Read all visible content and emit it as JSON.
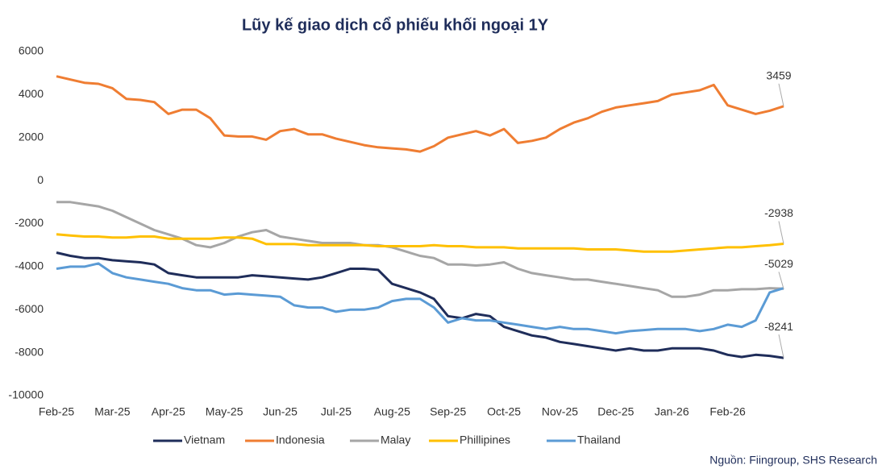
{
  "chart_data": {
    "type": "line",
    "title": "Lũy kế giao dịch cổ phiếu khối ngoại 1Y",
    "source": "Nguồn: Fiingroup, SHS Research",
    "categories": [
      "Feb-25",
      null,
      null,
      null,
      "Mar-25",
      null,
      null,
      null,
      "Apr-25",
      null,
      null,
      null,
      "May-25",
      null,
      null,
      null,
      "Jun-25",
      null,
      null,
      null,
      "Jul-25",
      null,
      null,
      null,
      "Aug-25",
      null,
      null,
      null,
      "Sep-25",
      null,
      null,
      null,
      "Oct-25",
      null,
      null,
      null,
      "Nov-25",
      null,
      null,
      null,
      "Dec-25",
      null,
      null,
      null,
      "Jan-26",
      null,
      null,
      null,
      "Feb-26",
      null,
      null,
      null,
      null
    ],
    "series": [
      {
        "name": "Vietnam",
        "color": "#1f2d5a",
        "values": [
          -3350,
          -3500,
          -3600,
          -3600,
          -3700,
          -3750,
          -3800,
          -3900,
          -4300,
          -4400,
          -4500,
          -4500,
          -4500,
          -4500,
          -4400,
          -4450,
          -4500,
          -4550,
          -4600,
          -4500,
          -4300,
          -4100,
          -4100,
          -4150,
          -4800,
          -5000,
          -5200,
          -5500,
          -6300,
          -6400,
          -6200,
          -6300,
          -6800,
          -7000,
          -7200,
          -7300,
          -7500,
          -7600,
          -7700,
          -7800,
          -7900,
          -7800,
          -7900,
          -7900,
          -7800,
          -7800,
          -7800,
          -7900,
          -8100,
          -8200,
          -8100,
          -8150,
          -8241
        ]
      },
      {
        "name": "Indonesia",
        "color": "#ef7d32",
        "values": [
          4850,
          4700,
          4550,
          4500,
          4300,
          3800,
          3750,
          3650,
          3100,
          3300,
          3300,
          2900,
          2100,
          2050,
          2050,
          1900,
          2300,
          2400,
          2150,
          2150,
          1950,
          1800,
          1650,
          1550,
          1500,
          1450,
          1350,
          1600,
          2000,
          2150,
          2300,
          2100,
          2400,
          1750,
          1850,
          2000,
          2400,
          2700,
          2900,
          3200,
          3400,
          3500,
          3600,
          3700,
          4000,
          4100,
          4200,
          4450,
          3500,
          3300,
          3100,
          3250,
          3459
        ]
      },
      {
        "name": "Malay",
        "color": "#a6a6a6",
        "values": [
          -1000,
          -1000,
          -1100,
          -1200,
          -1400,
          -1700,
          -2000,
          -2300,
          -2500,
          -2700,
          -3000,
          -3100,
          -2900,
          -2600,
          -2400,
          -2300,
          -2600,
          -2700,
          -2800,
          -2900,
          -2900,
          -2900,
          -3000,
          -3000,
          -3100,
          -3300,
          -3500,
          -3600,
          -3900,
          -3900,
          -3950,
          -3900,
          -3800,
          -4100,
          -4300,
          -4400,
          -4500,
          -4600,
          -4600,
          -4700,
          -4800,
          -4900,
          -5000,
          -5100,
          -5400,
          -5400,
          -5300,
          -5100,
          -5100,
          -5050,
          -5050,
          -5000,
          -5029
        ]
      },
      {
        "name": "Phillipines",
        "color": "#ffc000",
        "values": [
          -2500,
          -2550,
          -2600,
          -2600,
          -2650,
          -2650,
          -2600,
          -2600,
          -2700,
          -2700,
          -2700,
          -2700,
          -2650,
          -2650,
          -2700,
          -2950,
          -2950,
          -2950,
          -3000,
          -3000,
          -3000,
          -3000,
          -3000,
          -3050,
          -3050,
          -3050,
          -3050,
          -3000,
          -3050,
          -3050,
          -3100,
          -3100,
          -3100,
          -3150,
          -3150,
          -3150,
          -3150,
          -3150,
          -3200,
          -3200,
          -3200,
          -3250,
          -3300,
          -3300,
          -3300,
          -3250,
          -3200,
          -3150,
          -3100,
          -3100,
          -3050,
          -3000,
          -2938
        ]
      },
      {
        "name": "Thailand",
        "color": "#5b9bd5",
        "values": [
          -4100,
          -4000,
          -4000,
          -3850,
          -4300,
          -4500,
          -4600,
          -4700,
          -4800,
          -5000,
          -5100,
          -5100,
          -5300,
          -5250,
          -5300,
          -5350,
          -5400,
          -5800,
          -5900,
          -5900,
          -6100,
          -6000,
          -6000,
          -5900,
          -5600,
          -5500,
          -5500,
          -5900,
          -6600,
          -6400,
          -6500,
          -6500,
          -6600,
          -6700,
          -6800,
          -6900,
          -6800,
          -6900,
          -6900,
          -7000,
          -7100,
          -7000,
          -6950,
          -6900,
          -6900,
          -6900,
          -7000,
          -6900,
          -6700,
          -6800,
          -6500,
          -5200,
          -5000
        ]
      }
    ],
    "end_labels": [
      1,
      3,
      2,
      0
    ],
    "ylim": [
      -10000,
      6000
    ],
    "yticks": [
      6000,
      4000,
      2000,
      0,
      -2000,
      -4000,
      -6000,
      -8000,
      -10000
    ],
    "grid": false,
    "legend": "bottom"
  }
}
